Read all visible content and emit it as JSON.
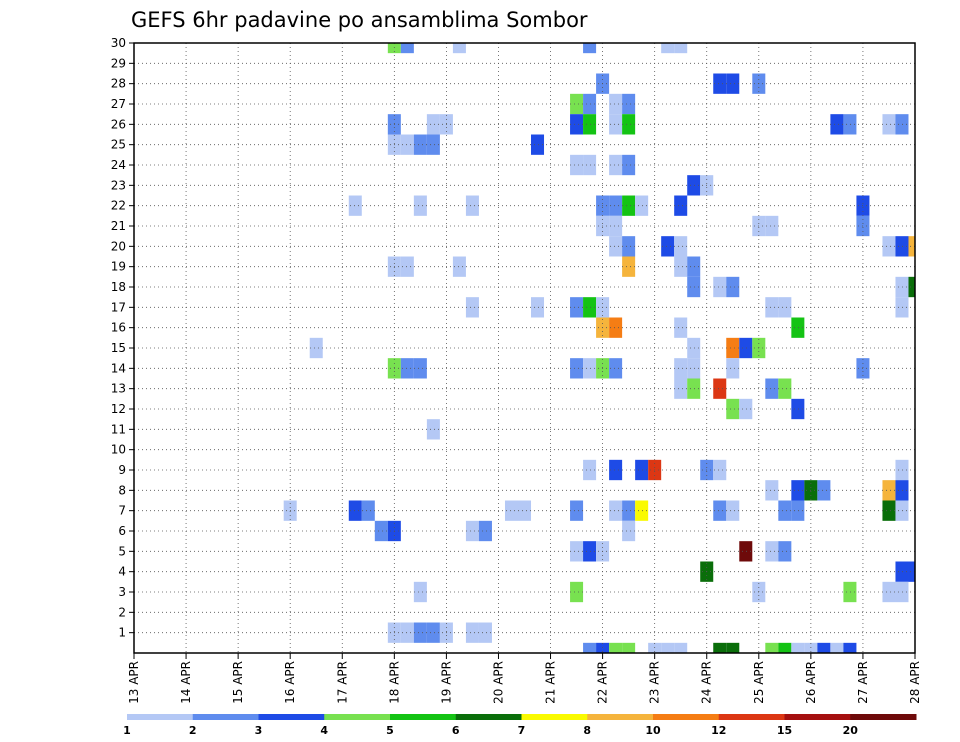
{
  "chart_data": {
    "type": "heatmap",
    "title": "GEFS 6hr padavine po ansamblima Sombor",
    "x_tick_labels": [
      "13 APR",
      "14 APR",
      "15 APR",
      "16 APR",
      "17 APR",
      "18 APR",
      "19 APR",
      "20 APR",
      "21 APR",
      "22 APR",
      "23 APR",
      "24 APR",
      "25 APR",
      "26 APR",
      "27 APR",
      "28 APR"
    ],
    "x_range_days": [
      0,
      15
    ],
    "y_tick_labels": [
      "1",
      "2",
      "3",
      "4",
      "5",
      "6",
      "7",
      "8",
      "9",
      "10",
      "11",
      "12",
      "13",
      "14",
      "15",
      "16",
      "17",
      "18",
      "19",
      "20",
      "21",
      "22",
      "23",
      "24",
      "25",
      "26",
      "27",
      "28",
      "29",
      "30"
    ],
    "y_range": [
      0,
      30
    ],
    "grid": true,
    "legend_position": "bottom",
    "levels": [
      "1",
      "2",
      "3",
      "4",
      "5",
      "6",
      "7",
      "8",
      "10",
      "12",
      "15",
      "20"
    ],
    "level_colors": [
      "#b4c8f5",
      "#5f8cee",
      "#1e4be6",
      "#78e150",
      "#14c314",
      "#0a6e0a",
      "#fafa00",
      "#f5b43c",
      "#f57d14",
      "#dc3714",
      "#a50f0f",
      "#6e0a0a"
    ],
    "cell_width_days": 0.25,
    "cells": [
      {
        "d": 5.0,
        "y": 30,
        "c": 4
      },
      {
        "d": 5.25,
        "y": 30,
        "c": 2
      },
      {
        "d": 6.25,
        "y": 30,
        "c": 1
      },
      {
        "d": 8.75,
        "y": 30,
        "c": 2
      },
      {
        "d": 10.25,
        "y": 30,
        "c": 1
      },
      {
        "d": 10.5,
        "y": 30,
        "c": 1
      },
      {
        "d": 9.0,
        "y": 28,
        "c": 2
      },
      {
        "d": 11.25,
        "y": 28,
        "c": 3
      },
      {
        "d": 11.5,
        "y": 28,
        "c": 3
      },
      {
        "d": 12.0,
        "y": 28,
        "c": 2
      },
      {
        "d": 8.5,
        "y": 27,
        "c": 4
      },
      {
        "d": 8.75,
        "y": 27,
        "c": 2
      },
      {
        "d": 9.25,
        "y": 27,
        "c": 1
      },
      {
        "d": 9.5,
        "y": 27,
        "c": 2
      },
      {
        "d": 5.0,
        "y": 26,
        "c": 2
      },
      {
        "d": 5.75,
        "y": 26,
        "c": 1
      },
      {
        "d": 6.0,
        "y": 26,
        "c": 1
      },
      {
        "d": 8.5,
        "y": 26,
        "c": 3
      },
      {
        "d": 8.75,
        "y": 26,
        "c": 5
      },
      {
        "d": 9.25,
        "y": 26,
        "c": 1
      },
      {
        "d": 9.5,
        "y": 26,
        "c": 5
      },
      {
        "d": 13.5,
        "y": 26,
        "c": 3
      },
      {
        "d": 13.75,
        "y": 26,
        "c": 2
      },
      {
        "d": 14.5,
        "y": 26,
        "c": 1
      },
      {
        "d": 14.75,
        "y": 26,
        "c": 2
      },
      {
        "d": 5.0,
        "y": 25,
        "c": 1
      },
      {
        "d": 5.25,
        "y": 25,
        "c": 1
      },
      {
        "d": 5.5,
        "y": 25,
        "c": 2
      },
      {
        "d": 5.75,
        "y": 25,
        "c": 2
      },
      {
        "d": 7.75,
        "y": 25,
        "c": 3
      },
      {
        "d": 8.5,
        "y": 24,
        "c": 1
      },
      {
        "d": 8.75,
        "y": 24,
        "c": 1
      },
      {
        "d": 9.25,
        "y": 24,
        "c": 1
      },
      {
        "d": 9.5,
        "y": 24,
        "c": 2
      },
      {
        "d": 10.75,
        "y": 23,
        "c": 3
      },
      {
        "d": 11.0,
        "y": 23,
        "c": 1
      },
      {
        "d": 4.25,
        "y": 22,
        "c": 1
      },
      {
        "d": 5.5,
        "y": 22,
        "c": 1
      },
      {
        "d": 6.5,
        "y": 22,
        "c": 1
      },
      {
        "d": 9.0,
        "y": 22,
        "c": 2
      },
      {
        "d": 9.25,
        "y": 22,
        "c": 2
      },
      {
        "d": 9.5,
        "y": 22,
        "c": 5
      },
      {
        "d": 9.75,
        "y": 22,
        "c": 1
      },
      {
        "d": 10.5,
        "y": 22,
        "c": 3
      },
      {
        "d": 14.0,
        "y": 22,
        "c": 3
      },
      {
        "d": 9.0,
        "y": 21,
        "c": 1
      },
      {
        "d": 9.25,
        "y": 21,
        "c": 1
      },
      {
        "d": 12.0,
        "y": 21,
        "c": 1
      },
      {
        "d": 12.25,
        "y": 21,
        "c": 1
      },
      {
        "d": 14.0,
        "y": 21,
        "c": 2
      },
      {
        "d": 9.25,
        "y": 20,
        "c": 1
      },
      {
        "d": 9.5,
        "y": 20,
        "c": 2
      },
      {
        "d": 10.25,
        "y": 20,
        "c": 3
      },
      {
        "d": 10.5,
        "y": 20,
        "c": 1
      },
      {
        "d": 14.5,
        "y": 20,
        "c": 1
      },
      {
        "d": 14.75,
        "y": 20,
        "c": 3
      },
      {
        "d": 15.0,
        "y": 20,
        "c": 8
      },
      {
        "d": 5.0,
        "y": 19,
        "c": 1
      },
      {
        "d": 5.25,
        "y": 19,
        "c": 1
      },
      {
        "d": 6.25,
        "y": 19,
        "c": 1
      },
      {
        "d": 9.5,
        "y": 19,
        "c": 8
      },
      {
        "d": 10.5,
        "y": 19,
        "c": 1
      },
      {
        "d": 10.75,
        "y": 19,
        "c": 2
      },
      {
        "d": 10.75,
        "y": 18,
        "c": 2
      },
      {
        "d": 11.25,
        "y": 18,
        "c": 1
      },
      {
        "d": 11.5,
        "y": 18,
        "c": 2
      },
      {
        "d": 14.75,
        "y": 18,
        "c": 1
      },
      {
        "d": 15.0,
        "y": 18,
        "c": 6
      },
      {
        "d": 6.5,
        "y": 17,
        "c": 1
      },
      {
        "d": 7.75,
        "y": 17,
        "c": 1
      },
      {
        "d": 8.5,
        "y": 17,
        "c": 2
      },
      {
        "d": 8.75,
        "y": 17,
        "c": 5
      },
      {
        "d": 9.0,
        "y": 17,
        "c": 1
      },
      {
        "d": 12.25,
        "y": 17,
        "c": 1
      },
      {
        "d": 12.5,
        "y": 17,
        "c": 1
      },
      {
        "d": 14.75,
        "y": 17,
        "c": 1
      },
      {
        "d": 9.0,
        "y": 16,
        "c": 8
      },
      {
        "d": 9.25,
        "y": 16,
        "c": 9
      },
      {
        "d": 10.5,
        "y": 16,
        "c": 1
      },
      {
        "d": 12.75,
        "y": 16,
        "c": 5
      },
      {
        "d": 3.5,
        "y": 15,
        "c": 1
      },
      {
        "d": 10.75,
        "y": 15,
        "c": 1
      },
      {
        "d": 11.5,
        "y": 15,
        "c": 9
      },
      {
        "d": 11.75,
        "y": 15,
        "c": 3
      },
      {
        "d": 12.0,
        "y": 15,
        "c": 4
      },
      {
        "d": 5.0,
        "y": 14,
        "c": 4
      },
      {
        "d": 5.25,
        "y": 14,
        "c": 2
      },
      {
        "d": 5.5,
        "y": 14,
        "c": 2
      },
      {
        "d": 8.5,
        "y": 14,
        "c": 2
      },
      {
        "d": 8.75,
        "y": 14,
        "c": 1
      },
      {
        "d": 9.0,
        "y": 14,
        "c": 4
      },
      {
        "d": 9.25,
        "y": 14,
        "c": 2
      },
      {
        "d": 10.5,
        "y": 14,
        "c": 1
      },
      {
        "d": 10.75,
        "y": 14,
        "c": 1
      },
      {
        "d": 11.5,
        "y": 14,
        "c": 1
      },
      {
        "d": 14.0,
        "y": 14,
        "c": 2
      },
      {
        "d": 10.5,
        "y": 13,
        "c": 1
      },
      {
        "d": 10.75,
        "y": 13,
        "c": 4
      },
      {
        "d": 11.25,
        "y": 13,
        "c": 10
      },
      {
        "d": 12.25,
        "y": 13,
        "c": 2
      },
      {
        "d": 12.5,
        "y": 13,
        "c": 4
      },
      {
        "d": 11.5,
        "y": 12,
        "c": 4
      },
      {
        "d": 11.75,
        "y": 12,
        "c": 1
      },
      {
        "d": 12.75,
        "y": 12,
        "c": 3
      },
      {
        "d": 5.75,
        "y": 11,
        "c": 1
      },
      {
        "d": 8.75,
        "y": 9,
        "c": 1
      },
      {
        "d": 9.25,
        "y": 9,
        "c": 3
      },
      {
        "d": 9.75,
        "y": 9,
        "c": 3
      },
      {
        "d": 10.0,
        "y": 9,
        "c": 10
      },
      {
        "d": 11.0,
        "y": 9,
        "c": 2
      },
      {
        "d": 11.25,
        "y": 9,
        "c": 1
      },
      {
        "d": 14.75,
        "y": 9,
        "c": 1
      },
      {
        "d": 12.25,
        "y": 8,
        "c": 1
      },
      {
        "d": 12.75,
        "y": 8,
        "c": 3
      },
      {
        "d": 13.0,
        "y": 8,
        "c": 6
      },
      {
        "d": 13.25,
        "y": 8,
        "c": 2
      },
      {
        "d": 14.5,
        "y": 8,
        "c": 8
      },
      {
        "d": 14.75,
        "y": 8,
        "c": 3
      },
      {
        "d": 3.0,
        "y": 7,
        "c": 1
      },
      {
        "d": 4.25,
        "y": 7,
        "c": 3
      },
      {
        "d": 4.5,
        "y": 7,
        "c": 2
      },
      {
        "d": 7.25,
        "y": 7,
        "c": 1
      },
      {
        "d": 7.5,
        "y": 7,
        "c": 1
      },
      {
        "d": 8.5,
        "y": 7,
        "c": 2
      },
      {
        "d": 9.25,
        "y": 7,
        "c": 1
      },
      {
        "d": 9.5,
        "y": 7,
        "c": 2
      },
      {
        "d": 9.75,
        "y": 7,
        "c": 7
      },
      {
        "d": 11.25,
        "y": 7,
        "c": 2
      },
      {
        "d": 11.5,
        "y": 7,
        "c": 1
      },
      {
        "d": 12.5,
        "y": 7,
        "c": 2
      },
      {
        "d": 12.75,
        "y": 7,
        "c": 2
      },
      {
        "d": 14.5,
        "y": 7,
        "c": 6
      },
      {
        "d": 14.75,
        "y": 7,
        "c": 1
      },
      {
        "d": 4.75,
        "y": 6,
        "c": 2
      },
      {
        "d": 5.0,
        "y": 6,
        "c": 3
      },
      {
        "d": 6.5,
        "y": 6,
        "c": 1
      },
      {
        "d": 6.75,
        "y": 6,
        "c": 2
      },
      {
        "d": 9.5,
        "y": 6,
        "c": 1
      },
      {
        "d": 8.5,
        "y": 5,
        "c": 1
      },
      {
        "d": 8.75,
        "y": 5,
        "c": 3
      },
      {
        "d": 9.0,
        "y": 5,
        "c": 1
      },
      {
        "d": 11.75,
        "y": 5,
        "c": 12
      },
      {
        "d": 12.25,
        "y": 5,
        "c": 1
      },
      {
        "d": 12.5,
        "y": 5,
        "c": 2
      },
      {
        "d": 11.0,
        "y": 4,
        "c": 6
      },
      {
        "d": 14.75,
        "y": 4,
        "c": 3
      },
      {
        "d": 15.0,
        "y": 4,
        "c": 3
      },
      {
        "d": 5.5,
        "y": 3,
        "c": 1
      },
      {
        "d": 8.5,
        "y": 3,
        "c": 4
      },
      {
        "d": 12.0,
        "y": 3,
        "c": 1
      },
      {
        "d": 13.75,
        "y": 3,
        "c": 4
      },
      {
        "d": 14.5,
        "y": 3,
        "c": 1
      },
      {
        "d": 14.75,
        "y": 3,
        "c": 1
      },
      {
        "d": 5.0,
        "y": 1,
        "c": 1
      },
      {
        "d": 5.25,
        "y": 1,
        "c": 1
      },
      {
        "d": 5.5,
        "y": 1,
        "c": 2
      },
      {
        "d": 5.75,
        "y": 1,
        "c": 2
      },
      {
        "d": 6.0,
        "y": 1,
        "c": 1
      },
      {
        "d": 6.5,
        "y": 1,
        "c": 1
      },
      {
        "d": 6.75,
        "y": 1,
        "c": 1
      },
      {
        "d": 8.75,
        "y": 0,
        "c": 2
      },
      {
        "d": 9.0,
        "y": 0,
        "c": 3
      },
      {
        "d": 9.25,
        "y": 0,
        "c": 4
      },
      {
        "d": 9.5,
        "y": 0,
        "c": 4
      },
      {
        "d": 10.0,
        "y": 0,
        "c": 1
      },
      {
        "d": 10.25,
        "y": 0,
        "c": 1
      },
      {
        "d": 10.5,
        "y": 0,
        "c": 1
      },
      {
        "d": 11.25,
        "y": 0,
        "c": 6
      },
      {
        "d": 11.5,
        "y": 0,
        "c": 6
      },
      {
        "d": 12.25,
        "y": 0,
        "c": 4
      },
      {
        "d": 12.5,
        "y": 0,
        "c": 5
      },
      {
        "d": 12.75,
        "y": 0,
        "c": 1
      },
      {
        "d": 13.0,
        "y": 0,
        "c": 1
      },
      {
        "d": 13.25,
        "y": 0,
        "c": 3
      },
      {
        "d": 13.5,
        "y": 0,
        "c": 1
      },
      {
        "d": 13.75,
        "y": 0,
        "c": 3
      }
    ]
  }
}
